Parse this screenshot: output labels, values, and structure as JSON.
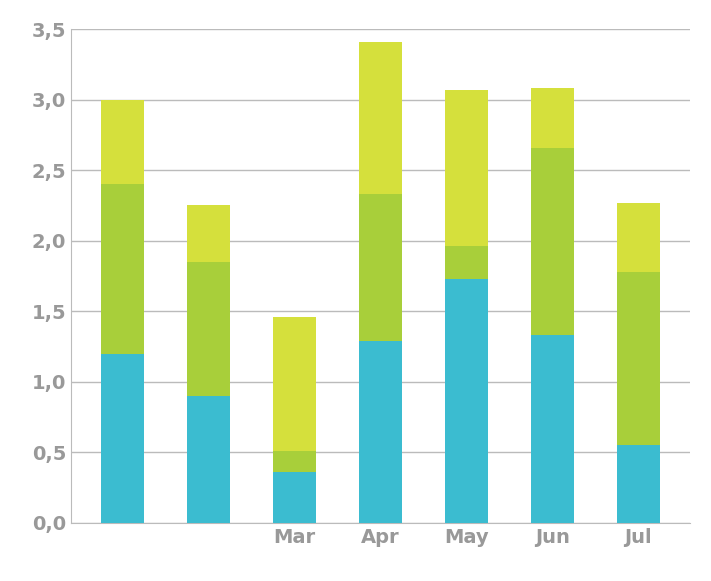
{
  "chart_data": {
    "type": "bar",
    "stacked": true,
    "grid": true,
    "categories": [
      null,
      null,
      "Mar",
      "Apr",
      "May",
      "Jun",
      "Jul"
    ],
    "series": [
      {
        "color": "#3bbcd0",
        "values": [
          1.2,
          0.9,
          0.36,
          1.29,
          1.73,
          1.33,
          0.55
        ]
      },
      {
        "color": "#a8cf3a",
        "values": [
          1.2,
          0.95,
          0.15,
          1.04,
          0.23,
          1.33,
          1.23
        ]
      },
      {
        "color": "#d5e03c",
        "values": [
          0.6,
          0.4,
          0.95,
          1.08,
          1.11,
          0.42,
          0.49
        ]
      }
    ],
    "ylim": [
      0,
      3.5
    ],
    "yticks": [
      {
        "value": 0,
        "label": "0,0"
      },
      {
        "value": 0.5,
        "label": "0,5"
      },
      {
        "value": 1,
        "label": "1,0"
      },
      {
        "value": 1.5,
        "label": "1,5"
      },
      {
        "value": 2,
        "label": "2,0"
      },
      {
        "value": 2.5,
        "label": "2,5"
      },
      {
        "value": 3,
        "label": "3,0"
      },
      {
        "value": 3.5,
        "label": "3,5"
      }
    ]
  }
}
